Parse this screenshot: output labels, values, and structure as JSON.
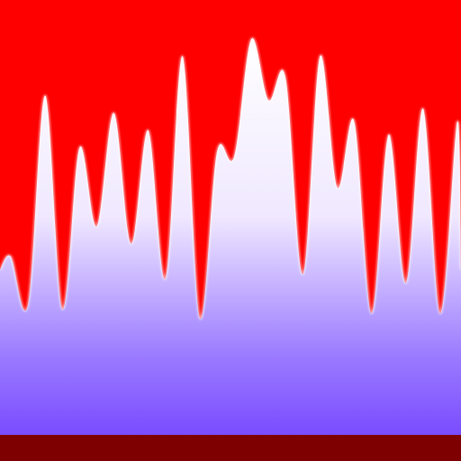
{
  "colors": {
    "background": "#ff0000",
    "floor": "#7f0000",
    "wave_top": "#ffffff",
    "wave_mid": "#f0e8ff",
    "wave_low": "#9b7bff",
    "wave_bottom": "#7a4cff"
  },
  "waveform": {
    "peak_levels": [
      0.41,
      0.78,
      0.66,
      0.74,
      0.7,
      0.87,
      0.65,
      0.91,
      0.82,
      0.87,
      0.72,
      0.69,
      0.75,
      0.72
    ],
    "trough_levels": [
      0.3,
      0.29,
      0.48,
      0.44,
      0.36,
      0.27,
      0.64,
      0.77,
      0.37,
      0.57,
      0.28,
      0.35,
      0.28
    ]
  }
}
